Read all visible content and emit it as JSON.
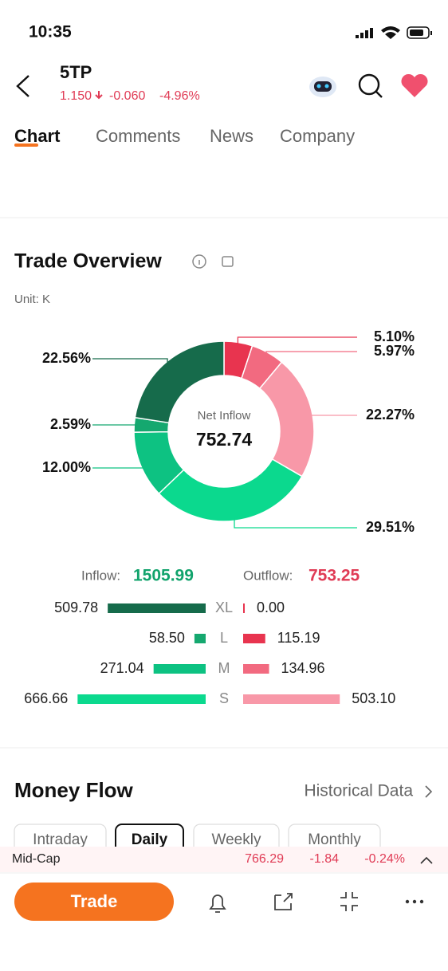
{
  "status_bar": {
    "time": "10:35"
  },
  "header": {
    "symbol": "5TP",
    "price": "1.150",
    "change": "-0.060",
    "change_pct": "-4.96%"
  },
  "tabs": [
    "Chart",
    "Comments",
    "News",
    "Company"
  ],
  "trade_overview": {
    "title": "Trade Overview",
    "unit": "Unit: K",
    "center_label": "Net Inflow",
    "net_inflow": "752.74",
    "donut": {
      "type": "pie",
      "values": [
        5.1,
        5.97,
        22.27,
        29.51,
        12.0,
        2.59,
        22.56
      ],
      "value_labels": [
        "5.10%",
        "5.97%",
        "22.27%",
        "29.51%",
        "12.00%",
        "2.59%",
        "22.56%"
      ],
      "colors": [
        "#e8344f",
        "#f26a80",
        "#f898a8",
        "#0bd98e",
        "#0dc282",
        "#15a86f",
        "#166b4b"
      ]
    },
    "inflow_label": "Inflow:",
    "inflow": "1505.99",
    "outflow_label": "Outflow:",
    "outflow": "753.25",
    "bars": {
      "type": "bar",
      "categories": [
        "XL",
        "L",
        "M",
        "S"
      ],
      "inflow": [
        509.78,
        58.5,
        271.04,
        666.66
      ],
      "inflow_labels": [
        "509.78",
        "58.50",
        "271.04",
        "666.66"
      ],
      "outflow": [
        0.0,
        115.19,
        134.96,
        503.1
      ],
      "outflow_labels": [
        "0.00",
        "115.19",
        "134.96",
        "503.10"
      ],
      "inflow_colors": [
        "#166b4b",
        "#15a86f",
        "#0dc282",
        "#0bd98e"
      ],
      "outflow_colors": [
        "#e8344f",
        "#e8344f",
        "#f26a80",
        "#f898a8"
      ]
    }
  },
  "money_flow": {
    "title": "Money Flow",
    "link": "Historical Data",
    "periods": [
      "Intraday",
      "Daily",
      "Weekly",
      "Monthly"
    ]
  },
  "ticker": {
    "name": "Mid-Cap",
    "price": "766.29",
    "change": "-1.84",
    "change_pct": "-0.24%"
  },
  "bottom_bar": {
    "button": "Trade"
  }
}
